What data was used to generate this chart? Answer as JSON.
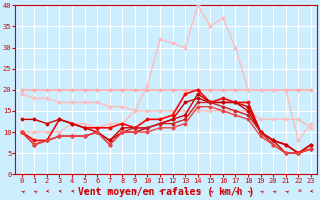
{
  "title": "",
  "xlabel": "Vent moyen/en rafales ( km/h )",
  "bg_color": "#cceeff",
  "grid_color": "#ffffff",
  "xlim": [
    -0.5,
    23.5
  ],
  "ylim": [
    0,
    40
  ],
  "yticks": [
    0,
    5,
    10,
    15,
    20,
    25,
    30,
    35,
    40
  ],
  "xticks": [
    0,
    1,
    2,
    3,
    4,
    5,
    6,
    7,
    8,
    9,
    10,
    11,
    12,
    13,
    14,
    15,
    16,
    17,
    18,
    19,
    20,
    21,
    22,
    23
  ],
  "series": [
    {
      "y": [
        20,
        20,
        20,
        20,
        20,
        20,
        20,
        20,
        20,
        20,
        20,
        20,
        20,
        20,
        20,
        20,
        20,
        20,
        20,
        20,
        20,
        20,
        20,
        20
      ],
      "color": "#ffaaaa",
      "lw": 1.2,
      "marker": "D",
      "ms": 1.5
    },
    {
      "y": [
        19,
        18,
        18,
        17,
        17,
        17,
        17,
        16,
        16,
        15,
        15,
        15,
        15,
        15,
        15,
        15,
        15,
        15,
        15,
        13,
        13,
        13,
        13,
        11
      ],
      "color": "#ffbbbb",
      "lw": 1.0,
      "marker": "D",
      "ms": 1.5
    },
    {
      "y": [
        10,
        10,
        10,
        10,
        12,
        12,
        11,
        12,
        12,
        15,
        21,
        32,
        31,
        30,
        40,
        35,
        37,
        30,
        20,
        20,
        20,
        20,
        8,
        12
      ],
      "color": "#ffbbbb",
      "lw": 1.0,
      "marker": "D",
      "ms": 1.5
    },
    {
      "y": [
        10,
        8,
        8,
        13,
        12,
        11,
        11,
        11,
        12,
        11,
        13,
        13,
        14,
        19,
        20,
        17,
        18,
        17,
        17,
        10,
        8,
        7,
        5,
        7
      ],
      "color": "#ff0000",
      "lw": 1.2,
      "marker": "D",
      "ms": 1.5
    },
    {
      "y": [
        13,
        13,
        12,
        13,
        12,
        11,
        10,
        8,
        11,
        11,
        11,
        12,
        13,
        17,
        18,
        17,
        17,
        17,
        16,
        10,
        8,
        7,
        5,
        7
      ],
      "color": "#cc0000",
      "lw": 1.0,
      "marker": "D",
      "ms": 1.5
    },
    {
      "y": [
        10,
        7,
        8,
        9,
        9,
        9,
        10,
        8,
        10,
        10,
        11,
        12,
        13,
        14,
        19,
        17,
        17,
        17,
        15,
        10,
        8,
        5,
        5,
        6
      ],
      "color": "#cc0000",
      "lw": 1.0,
      "marker": "D",
      "ms": 1.5
    },
    {
      "y": [
        10,
        7,
        8,
        9,
        9,
        9,
        10,
        7,
        10,
        11,
        11,
        12,
        12,
        13,
        17,
        17,
        16,
        15,
        14,
        10,
        7,
        5,
        5,
        6
      ],
      "color": "#cc2222",
      "lw": 1.0,
      "marker": "D",
      "ms": 1.5
    },
    {
      "y": [
        10,
        7,
        8,
        9,
        9,
        9,
        10,
        7,
        10,
        10,
        10,
        11,
        11,
        12,
        16,
        16,
        15,
        14,
        13,
        9,
        7,
        5,
        5,
        6
      ],
      "color": "#ee4444",
      "lw": 1.0,
      "marker": "D",
      "ms": 1.5
    }
  ],
  "xlabel_color": "#cc0000",
  "xlabel_fontsize": 7,
  "tick_fontsize": 5,
  "tick_color": "#cc0000",
  "spine_color": "#cc0000"
}
